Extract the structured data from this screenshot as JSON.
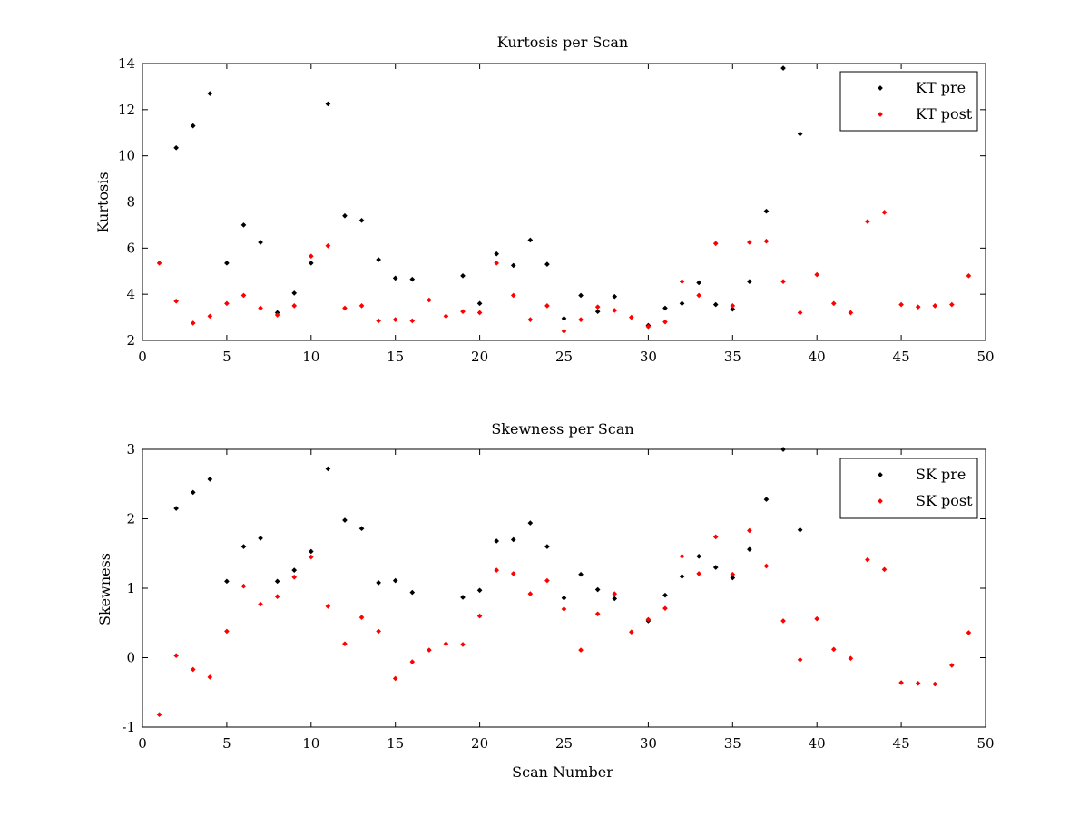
{
  "chart_data": [
    {
      "type": "scatter",
      "title": "Kurtosis per Scan",
      "xlabel": "",
      "ylabel": "Kurtosis",
      "xlim": [
        0,
        50
      ],
      "ylim": [
        2,
        14
      ],
      "xticks": [
        0,
        5,
        10,
        15,
        20,
        25,
        30,
        35,
        40,
        45,
        50
      ],
      "yticks": [
        2,
        4,
        6,
        8,
        10,
        12,
        14
      ],
      "grid": false,
      "legend": "top-right",
      "series": [
        {
          "name": "KT pre",
          "color": "#000000",
          "points": [
            [
              2,
              10.35
            ],
            [
              3,
              11.3
            ],
            [
              4,
              12.7
            ],
            [
              5,
              5.35
            ],
            [
              6,
              7.0
            ],
            [
              7,
              6.25
            ],
            [
              8,
              3.2
            ],
            [
              9,
              4.05
            ],
            [
              10,
              5.35
            ],
            [
              11,
              12.25
            ],
            [
              12,
              7.4
            ],
            [
              13,
              7.2
            ],
            [
              14,
              5.5
            ],
            [
              15,
              4.7
            ],
            [
              16,
              4.65
            ],
            [
              19,
              4.8
            ],
            [
              20,
              3.6
            ],
            [
              21,
              5.75
            ],
            [
              22,
              5.25
            ],
            [
              23,
              6.35
            ],
            [
              24,
              5.3
            ],
            [
              25,
              2.95
            ],
            [
              26,
              3.95
            ],
            [
              27,
              3.25
            ],
            [
              28,
              3.9
            ],
            [
              30,
              2.65
            ],
            [
              31,
              3.4
            ],
            [
              32,
              3.6
            ],
            [
              33,
              4.5
            ],
            [
              34,
              3.55
            ],
            [
              35,
              3.35
            ],
            [
              36,
              4.55
            ],
            [
              37,
              7.6
            ],
            [
              38,
              13.8
            ],
            [
              39,
              10.95
            ]
          ]
        },
        {
          "name": "KT post",
          "color": "#ff0000",
          "points": [
            [
              1,
              5.35
            ],
            [
              2,
              3.7
            ],
            [
              3,
              2.75
            ],
            [
              4,
              3.05
            ],
            [
              5,
              3.6
            ],
            [
              6,
              3.95
            ],
            [
              7,
              3.4
            ],
            [
              8,
              3.1
            ],
            [
              9,
              3.5
            ],
            [
              10,
              5.65
            ],
            [
              11,
              6.1
            ],
            [
              12,
              3.4
            ],
            [
              13,
              3.5
            ],
            [
              14,
              2.85
            ],
            [
              15,
              2.9
            ],
            [
              16,
              2.85
            ],
            [
              17,
              3.75
            ],
            [
              18,
              3.05
            ],
            [
              19,
              3.25
            ],
            [
              20,
              3.2
            ],
            [
              21,
              5.35
            ],
            [
              22,
              3.95
            ],
            [
              23,
              2.9
            ],
            [
              24,
              3.5
            ],
            [
              25,
              2.4
            ],
            [
              26,
              2.9
            ],
            [
              27,
              3.45
            ],
            [
              28,
              3.3
            ],
            [
              29,
              3.0
            ],
            [
              30,
              2.6
            ],
            [
              31,
              2.8
            ],
            [
              32,
              4.55
            ],
            [
              33,
              3.95
            ],
            [
              34,
              6.2
            ],
            [
              35,
              3.5
            ],
            [
              36,
              6.25
            ],
            [
              37,
              6.3
            ],
            [
              38,
              4.55
            ],
            [
              39,
              3.2
            ],
            [
              40,
              4.85
            ],
            [
              41,
              3.6
            ],
            [
              42,
              3.2
            ],
            [
              43,
              7.15
            ],
            [
              44,
              7.55
            ],
            [
              45,
              3.55
            ],
            [
              46,
              3.45
            ],
            [
              47,
              3.5
            ],
            [
              48,
              3.55
            ],
            [
              49,
              4.8
            ]
          ]
        }
      ]
    },
    {
      "type": "scatter",
      "title": "Skewness per Scan",
      "xlabel": "Scan Number",
      "ylabel": "Skewness",
      "xlim": [
        0,
        50
      ],
      "ylim": [
        -1,
        3
      ],
      "xticks": [
        0,
        5,
        10,
        15,
        20,
        25,
        30,
        35,
        40,
        45,
        50
      ],
      "yticks": [
        -1,
        0,
        1,
        2,
        3
      ],
      "grid": false,
      "legend": "top-right",
      "series": [
        {
          "name": "SK pre",
          "color": "#000000",
          "points": [
            [
              2,
              2.15
            ],
            [
              3,
              2.38
            ],
            [
              4,
              2.57
            ],
            [
              5,
              1.1
            ],
            [
              6,
              1.6
            ],
            [
              7,
              1.72
            ],
            [
              8,
              1.1
            ],
            [
              9,
              1.26
            ],
            [
              10,
              1.53
            ],
            [
              11,
              2.72
            ],
            [
              12,
              1.98
            ],
            [
              13,
              1.86
            ],
            [
              14,
              1.08
            ],
            [
              15,
              1.11
            ],
            [
              16,
              0.94
            ],
            [
              19,
              0.87
            ],
            [
              20,
              0.97
            ],
            [
              21,
              1.68
            ],
            [
              22,
              1.7
            ],
            [
              23,
              1.94
            ],
            [
              24,
              1.6
            ],
            [
              25,
              0.86
            ],
            [
              26,
              1.2
            ],
            [
              27,
              0.98
            ],
            [
              28,
              0.85
            ],
            [
              30,
              0.53
            ],
            [
              31,
              0.9
            ],
            [
              32,
              1.17
            ],
            [
              33,
              1.46
            ],
            [
              34,
              1.3
            ],
            [
              35,
              1.15
            ],
            [
              36,
              1.56
            ],
            [
              37,
              2.28
            ],
            [
              38,
              3.0
            ],
            [
              39,
              1.84
            ]
          ]
        },
        {
          "name": "SK post",
          "color": "#ff0000",
          "points": [
            [
              1,
              -0.82
            ],
            [
              2,
              0.03
            ],
            [
              3,
              -0.17
            ],
            [
              4,
              -0.28
            ],
            [
              5,
              0.38
            ],
            [
              6,
              1.03
            ],
            [
              7,
              0.77
            ],
            [
              8,
              0.88
            ],
            [
              9,
              1.16
            ],
            [
              10,
              1.45
            ],
            [
              11,
              0.74
            ],
            [
              12,
              0.2
            ],
            [
              13,
              0.58
            ],
            [
              14,
              0.38
            ],
            [
              15,
              -0.3
            ],
            [
              16,
              -0.06
            ],
            [
              17,
              0.11
            ],
            [
              18,
              0.2
            ],
            [
              19,
              0.19
            ],
            [
              20,
              0.6
            ],
            [
              21,
              1.26
            ],
            [
              22,
              1.21
            ],
            [
              23,
              0.92
            ],
            [
              24,
              1.11
            ],
            [
              25,
              0.7
            ],
            [
              26,
              0.11
            ],
            [
              27,
              0.63
            ],
            [
              28,
              0.92
            ],
            [
              29,
              0.37
            ],
            [
              30,
              0.55
            ],
            [
              31,
              0.71
            ],
            [
              32,
              1.46
            ],
            [
              33,
              1.21
            ],
            [
              34,
              1.74
            ],
            [
              35,
              1.2
            ],
            [
              36,
              1.83
            ],
            [
              37,
              1.32
            ],
            [
              38,
              0.53
            ],
            [
              39,
              -0.03
            ],
            [
              40,
              0.56
            ],
            [
              41,
              0.12
            ],
            [
              42,
              -0.01
            ],
            [
              43,
              1.41
            ],
            [
              44,
              1.27
            ],
            [
              45,
              -0.36
            ],
            [
              46,
              -0.37
            ],
            [
              47,
              -0.38
            ],
            [
              48,
              -0.11
            ],
            [
              49,
              0.36
            ]
          ]
        }
      ]
    }
  ]
}
